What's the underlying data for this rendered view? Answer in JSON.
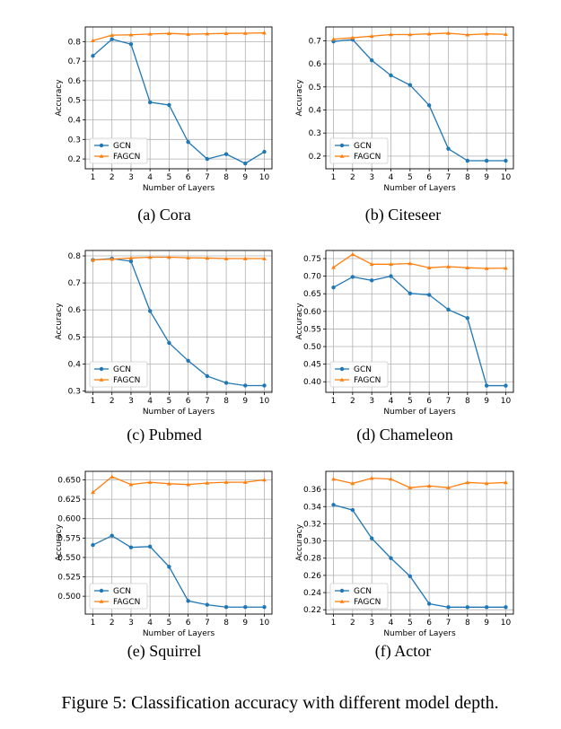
{
  "figure_caption": "Figure 5: Classification accuracy with different model depth.",
  "colors": {
    "gcn": "#1f77b4",
    "fagcn": "#ff7f0e",
    "grid": "#b0b0b0",
    "axis": "#000000"
  },
  "chart_data": [
    {
      "type": "line",
      "caption": "(a) Cora",
      "xlabel": "Number of Layers",
      "ylabel": "Accuracy",
      "x": [
        1,
        2,
        3,
        4,
        5,
        6,
        7,
        8,
        9,
        10
      ],
      "xlim": [
        0.6,
        10.4
      ],
      "ylim": [
        0.15,
        0.875
      ],
      "yticks": [
        0.2,
        0.3,
        0.4,
        0.5,
        0.6,
        0.7,
        0.8
      ],
      "yticklabels": [
        "0.2",
        "0.3",
        "0.4",
        "0.5",
        "0.6",
        "0.7",
        "0.8"
      ],
      "legend_position": "lower-left",
      "series": [
        {
          "name": "GCN",
          "marker": "circle",
          "values": [
            0.727,
            0.812,
            0.787,
            0.49,
            0.476,
            0.287,
            0.2,
            0.225,
            0.177,
            0.237
          ]
        },
        {
          "name": "FAGCN",
          "marker": "triangle",
          "values": [
            0.805,
            0.833,
            0.835,
            0.839,
            0.842,
            0.838,
            0.84,
            0.842,
            0.843,
            0.845
          ]
        }
      ]
    },
    {
      "type": "line",
      "caption": "(b) Citeseer",
      "xlabel": "Number of Layers",
      "ylabel": "Accuracy",
      "x": [
        1,
        2,
        3,
        4,
        5,
        6,
        7,
        8,
        9,
        10
      ],
      "xlim": [
        0.6,
        10.4
      ],
      "ylim": [
        0.145,
        0.76
      ],
      "yticks": [
        0.2,
        0.3,
        0.4,
        0.5,
        0.6,
        0.7
      ],
      "yticklabels": [
        "0.2",
        "0.3",
        "0.4",
        "0.5",
        "0.6",
        "0.7"
      ],
      "legend_position": "lower-left",
      "series": [
        {
          "name": "GCN",
          "marker": "circle",
          "values": [
            0.697,
            0.705,
            0.615,
            0.55,
            0.508,
            0.42,
            0.232,
            0.18,
            0.18,
            0.18
          ]
        },
        {
          "name": "FAGCN",
          "marker": "triangle",
          "values": [
            0.707,
            0.713,
            0.72,
            0.727,
            0.727,
            0.73,
            0.733,
            0.726,
            0.73,
            0.728
          ]
        }
      ]
    },
    {
      "type": "line",
      "caption": "(c) Pubmed",
      "xlabel": "Number of Layers",
      "ylabel": "Accuracy",
      "x": [
        1,
        2,
        3,
        4,
        5,
        6,
        7,
        8,
        9,
        10
      ],
      "xlim": [
        0.6,
        10.4
      ],
      "ylim": [
        0.295,
        0.82
      ],
      "yticks": [
        0.3,
        0.4,
        0.5,
        0.6,
        0.7,
        0.8
      ],
      "yticklabels": [
        "0.3",
        "0.4",
        "0.5",
        "0.6",
        "0.7",
        "0.8"
      ],
      "legend_position": "lower-left",
      "series": [
        {
          "name": "GCN",
          "marker": "circle",
          "values": [
            0.785,
            0.79,
            0.78,
            0.596,
            0.478,
            0.412,
            0.355,
            0.33,
            0.32,
            0.32
          ]
        },
        {
          "name": "FAGCN",
          "marker": "triangle",
          "values": [
            0.785,
            0.788,
            0.792,
            0.795,
            0.795,
            0.793,
            0.792,
            0.79,
            0.79,
            0.79
          ]
        }
      ]
    },
    {
      "type": "line",
      "caption": "(d) Chameleon",
      "xlabel": "Number of Layers",
      "ylabel": "Accuracy",
      "x": [
        1,
        2,
        3,
        4,
        5,
        6,
        7,
        8,
        9,
        10
      ],
      "xlim": [
        0.6,
        10.4
      ],
      "ylim": [
        0.37,
        0.773
      ],
      "yticks": [
        0.4,
        0.45,
        0.5,
        0.55,
        0.6,
        0.65,
        0.7,
        0.75
      ],
      "yticklabels": [
        "0.40",
        "0.45",
        "0.50",
        "0.55",
        "0.60",
        "0.65",
        "0.70",
        "0.75"
      ],
      "legend_position": "lower-left",
      "series": [
        {
          "name": "GCN",
          "marker": "circle",
          "values": [
            0.668,
            0.698,
            0.688,
            0.7,
            0.651,
            0.647,
            0.605,
            0.581,
            0.389,
            0.389
          ]
        },
        {
          "name": "FAGCN",
          "marker": "triangle",
          "values": [
            0.725,
            0.762,
            0.734,
            0.734,
            0.736,
            0.724,
            0.727,
            0.724,
            0.722,
            0.723
          ]
        }
      ]
    },
    {
      "type": "line",
      "caption": "(e) Squirrel",
      "xlabel": "Number of Layers",
      "ylabel": "Accuracy",
      "x": [
        1,
        2,
        3,
        4,
        5,
        6,
        7,
        8,
        9,
        10
      ],
      "xlim": [
        0.6,
        10.4
      ],
      "ylim": [
        0.477,
        0.661
      ],
      "yticks": [
        0.5,
        0.525,
        0.55,
        0.575,
        0.6,
        0.625,
        0.65
      ],
      "yticklabels": [
        "0.500",
        "0.525",
        "0.550",
        "0.575",
        "0.600",
        "0.625",
        "0.650"
      ],
      "legend_position": "lower-left",
      "series": [
        {
          "name": "GCN",
          "marker": "circle",
          "values": [
            0.566,
            0.578,
            0.563,
            0.564,
            0.538,
            0.494,
            0.489,
            0.486,
            0.486,
            0.486
          ]
        },
        {
          "name": "FAGCN",
          "marker": "triangle",
          "values": [
            0.634,
            0.654,
            0.644,
            0.647,
            0.645,
            0.644,
            0.646,
            0.647,
            0.647,
            0.65
          ]
        }
      ]
    },
    {
      "type": "line",
      "caption": "(f) Actor",
      "xlabel": "Number of Layers",
      "ylabel": "Accuracy",
      "x": [
        1,
        2,
        3,
        4,
        5,
        6,
        7,
        8,
        9,
        10
      ],
      "xlim": [
        0.6,
        10.4
      ],
      "ylim": [
        0.215,
        0.381
      ],
      "yticks": [
        0.22,
        0.24,
        0.26,
        0.28,
        0.3,
        0.32,
        0.34,
        0.36
      ],
      "yticklabels": [
        "0.22",
        "0.24",
        "0.26",
        "0.28",
        "0.30",
        "0.32",
        "0.34",
        "0.36"
      ],
      "legend_position": "lower-left",
      "series": [
        {
          "name": "GCN",
          "marker": "circle",
          "values": [
            0.342,
            0.336,
            0.303,
            0.28,
            0.259,
            0.227,
            0.223,
            0.223,
            0.223,
            0.223
          ]
        },
        {
          "name": "FAGCN",
          "marker": "triangle",
          "values": [
            0.372,
            0.367,
            0.373,
            0.372,
            0.362,
            0.364,
            0.362,
            0.368,
            0.367,
            0.368
          ]
        }
      ]
    }
  ]
}
